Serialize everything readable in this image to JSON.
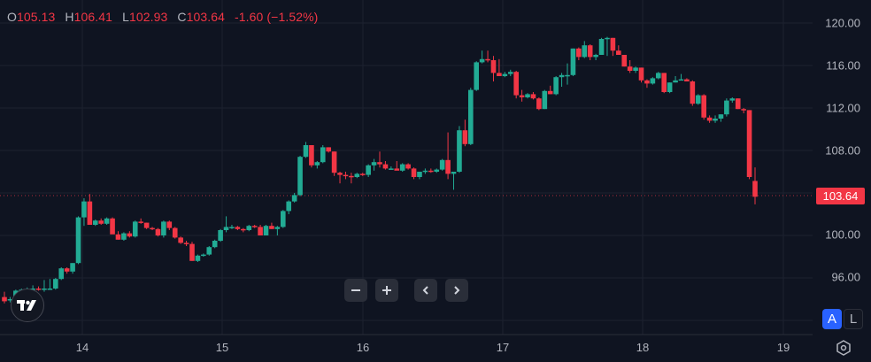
{
  "legend": {
    "open_label": "O",
    "open": "105.13",
    "high_label": "H",
    "high": "106.41",
    "low_label": "L",
    "low": "102.93",
    "close_label": "C",
    "close": "103.64",
    "change": "-1.60 (−1.52%)"
  },
  "price_axis": {
    "labels": [
      "120.00",
      "116.00",
      "112.00",
      "108.00",
      "100.00",
      "96.00"
    ],
    "last_price": "103.64"
  },
  "time_axis": {
    "labels": [
      "14",
      "15",
      "16",
      "17",
      "18",
      "19"
    ]
  },
  "controls": {
    "zoom_out": "−",
    "zoom_in": "+",
    "scroll_left": "‹",
    "scroll_right": "›",
    "auto_scale": "A",
    "log_scale": "L"
  },
  "colors": {
    "background": "#0f1421",
    "up": "#22ab94",
    "down": "#f23645",
    "grid": "#1c2230",
    "accent": "#2962ff"
  },
  "chart_data": {
    "type": "candlestick",
    "title": "",
    "xlabel": "",
    "ylabel": "",
    "x_ticks": [
      "14",
      "15",
      "16",
      "17",
      "18",
      "19"
    ],
    "y_ticks": [
      96,
      100,
      104,
      108,
      112,
      116,
      120
    ],
    "ylim": [
      93,
      121
    ],
    "grid": true,
    "last_price": 103.64,
    "last_ohlc": {
      "open": 105.13,
      "high": 106.41,
      "low": 102.93,
      "close": 103.64,
      "change": -1.6,
      "change_pct": -1.52
    },
    "candles": [
      [
        94.2,
        94.7,
        93.6,
        93.8
      ],
      [
        93.9,
        94.2,
        93.7,
        94.0
      ],
      [
        94.0,
        94.9,
        93.9,
        94.8
      ],
      [
        94.8,
        95.0,
        94.6,
        94.9
      ],
      [
        94.9,
        95.1,
        94.7,
        94.9
      ],
      [
        94.9,
        95.3,
        94.8,
        95.0
      ],
      [
        95.0,
        95.2,
        94.8,
        94.9
      ],
      [
        94.9,
        95.8,
        94.7,
        95.0
      ],
      [
        95.0,
        95.9,
        94.9,
        95.0
      ],
      [
        95.0,
        96.0,
        94.9,
        95.9
      ],
      [
        95.9,
        97.0,
        95.8,
        96.9
      ],
      [
        96.9,
        97.0,
        96.4,
        96.6
      ],
      [
        96.6,
        97.4,
        96.4,
        97.4
      ],
      [
        97.4,
        101.8,
        97.3,
        101.7
      ],
      [
        101.7,
        103.5,
        100.9,
        103.2
      ],
      [
        103.2,
        103.9,
        101.0,
        101.0
      ],
      [
        101.0,
        101.5,
        100.9,
        101.4
      ],
      [
        101.4,
        101.6,
        101.0,
        101.1
      ],
      [
        101.1,
        101.7,
        101.0,
        101.6
      ],
      [
        101.6,
        101.7,
        100.2,
        100.1
      ],
      [
        100.1,
        100.4,
        99.6,
        99.6
      ],
      [
        99.6,
        100.3,
        99.5,
        100.2
      ],
      [
        100.2,
        100.4,
        99.8,
        99.9
      ],
      [
        99.9,
        101.4,
        99.8,
        101.3
      ],
      [
        101.3,
        101.6,
        101.1,
        101.2
      ],
      [
        101.2,
        101.2,
        100.6,
        100.7
      ],
      [
        100.7,
        100.8,
        100.5,
        100.6
      ],
      [
        100.6,
        100.7,
        99.9,
        100.0
      ],
      [
        100.0,
        101.4,
        99.8,
        101.3
      ],
      [
        101.3,
        101.4,
        100.5,
        100.7
      ],
      [
        100.7,
        100.8,
        99.7,
        99.8
      ],
      [
        99.8,
        99.9,
        99.2,
        99.3
      ],
      [
        99.3,
        99.5,
        99.0,
        99.2
      ],
      [
        99.2,
        99.4,
        97.6,
        97.6
      ],
      [
        97.6,
        98.2,
        97.5,
        98.1
      ],
      [
        98.1,
        98.3,
        98.0,
        98.2
      ],
      [
        98.2,
        99.0,
        98.1,
        98.9
      ],
      [
        98.9,
        99.6,
        98.8,
        99.5
      ],
      [
        99.5,
        100.6,
        99.4,
        100.5
      ],
      [
        100.5,
        101.8,
        100.3,
        100.8
      ],
      [
        100.8,
        101.0,
        100.6,
        100.8
      ],
      [
        100.8,
        100.9,
        100.5,
        100.6
      ],
      [
        100.6,
        100.7,
        100.3,
        100.5
      ],
      [
        100.5,
        101.0,
        100.4,
        100.9
      ],
      [
        100.9,
        101.0,
        100.7,
        100.8
      ],
      [
        100.8,
        101.0,
        100.0,
        100.0
      ],
      [
        100.0,
        101.0,
        100.0,
        100.9
      ],
      [
        100.9,
        101.2,
        100.6,
        100.6
      ],
      [
        100.6,
        100.9,
        100.0,
        100.8
      ],
      [
        100.8,
        102.4,
        100.7,
        102.3
      ],
      [
        102.3,
        103.3,
        102.0,
        103.2
      ],
      [
        103.2,
        104.0,
        103.1,
        103.8
      ],
      [
        103.8,
        107.5,
        103.7,
        107.4
      ],
      [
        107.4,
        108.8,
        107.3,
        108.5
      ],
      [
        108.5,
        108.5,
        106.4,
        106.6
      ],
      [
        106.6,
        107.0,
        106.3,
        106.9
      ],
      [
        106.9,
        108.5,
        106.8,
        108.3
      ],
      [
        108.3,
        108.3,
        107.8,
        107.9
      ],
      [
        107.9,
        107.9,
        105.6,
        105.9
      ],
      [
        105.9,
        106.0,
        104.9,
        105.7
      ],
      [
        105.7,
        106.0,
        105.3,
        105.6
      ],
      [
        105.6,
        105.9,
        104.9,
        105.5
      ],
      [
        105.5,
        105.9,
        105.4,
        105.8
      ],
      [
        105.8,
        105.9,
        105.6,
        105.7
      ],
      [
        105.7,
        106.7,
        105.5,
        106.6
      ],
      [
        106.6,
        107.2,
        106.1,
        106.9
      ],
      [
        106.9,
        107.9,
        106.4,
        106.7
      ],
      [
        106.7,
        107.0,
        106.2,
        106.3
      ],
      [
        106.3,
        106.5,
        106.2,
        106.3
      ],
      [
        106.3,
        107.0,
        106.2,
        106.1
      ],
      [
        106.1,
        106.8,
        106.0,
        106.7
      ],
      [
        106.7,
        106.8,
        106.2,
        106.3
      ],
      [
        106.3,
        106.4,
        105.3,
        105.5
      ],
      [
        105.5,
        106.0,
        105.3,
        106.0
      ],
      [
        106.0,
        106.3,
        105.8,
        106.1
      ],
      [
        106.1,
        106.3,
        105.9,
        106.0
      ],
      [
        106.0,
        106.3,
        105.9,
        106.2
      ],
      [
        106.2,
        107.2,
        106.1,
        107.1
      ],
      [
        107.1,
        109.7,
        105.3,
        105.8
      ],
      [
        105.8,
        106.0,
        104.3,
        106.0
      ],
      [
        106.0,
        110.3,
        105.9,
        109.9
      ],
      [
        109.9,
        110.9,
        108.4,
        108.6
      ],
      [
        108.6,
        113.9,
        108.5,
        113.7
      ],
      [
        113.7,
        116.4,
        113.6,
        116.3
      ],
      [
        116.3,
        117.4,
        116.2,
        116.6
      ],
      [
        116.6,
        117.4,
        116.3,
        116.5
      ],
      [
        116.5,
        116.9,
        114.5,
        115.3
      ],
      [
        115.3,
        116.6,
        115.2,
        115.0
      ],
      [
        115.0,
        115.4,
        114.9,
        115.2
      ],
      [
        115.2,
        115.6,
        115.0,
        115.4
      ],
      [
        115.4,
        115.5,
        112.9,
        113.2
      ],
      [
        113.2,
        113.7,
        112.6,
        113.0
      ],
      [
        113.0,
        113.4,
        112.9,
        113.3
      ],
      [
        113.3,
        113.5,
        112.8,
        112.9
      ],
      [
        112.9,
        113.0,
        111.8,
        111.9
      ],
      [
        111.9,
        113.7,
        111.9,
        113.6
      ],
      [
        113.6,
        114.1,
        113.3,
        113.3
      ],
      [
        113.3,
        115.0,
        113.2,
        114.9
      ],
      [
        114.9,
        115.3,
        114.0,
        115.1
      ],
      [
        115.1,
        116.2,
        114.2,
        115.1
      ],
      [
        115.1,
        117.6,
        115.0,
        117.6
      ],
      [
        117.6,
        117.7,
        116.5,
        116.8
      ],
      [
        116.8,
        118.3,
        116.7,
        117.9
      ],
      [
        117.9,
        118.0,
        116.5,
        116.8
      ],
      [
        116.8,
        117.1,
        116.5,
        117.0
      ],
      [
        117.0,
        118.6,
        117.0,
        118.5
      ],
      [
        118.5,
        118.7,
        116.9,
        118.6
      ],
      [
        118.6,
        118.6,
        116.9,
        117.4
      ],
      [
        117.4,
        117.9,
        117.0,
        117.0
      ],
      [
        117.0,
        117.0,
        115.9,
        115.9
      ],
      [
        115.9,
        116.5,
        115.3,
        115.5
      ],
      [
        115.5,
        115.9,
        115.3,
        115.8
      ],
      [
        115.8,
        115.8,
        114.4,
        114.6
      ],
      [
        114.6,
        114.7,
        113.9,
        114.3
      ],
      [
        114.3,
        114.9,
        114.2,
        114.8
      ],
      [
        114.8,
        115.4,
        114.7,
        115.3
      ],
      [
        115.3,
        115.3,
        113.4,
        113.5
      ],
      [
        113.5,
        114.4,
        113.4,
        114.4
      ],
      [
        114.4,
        115.0,
        114.4,
        114.6
      ],
      [
        114.6,
        115.2,
        114.6,
        114.7
      ],
      [
        114.7,
        114.8,
        114.5,
        114.5
      ],
      [
        114.5,
        114.6,
        112.2,
        112.4
      ],
      [
        112.4,
        113.3,
        112.3,
        113.2
      ],
      [
        113.2,
        113.3,
        110.9,
        111.1
      ],
      [
        111.1,
        111.3,
        110.6,
        110.8
      ],
      [
        110.8,
        111.3,
        110.6,
        111.0
      ],
      [
        111.0,
        111.4,
        110.7,
        111.4
      ],
      [
        111.4,
        112.9,
        111.2,
        112.7
      ],
      [
        112.7,
        113.0,
        112.5,
        112.9
      ],
      [
        112.9,
        112.9,
        111.9,
        111.9
      ],
      [
        111.9,
        112.0,
        111.5,
        111.8
      ],
      [
        111.8,
        111.8,
        105.3,
        105.5
      ],
      [
        105.13,
        106.41,
        102.93,
        103.64
      ]
    ]
  }
}
